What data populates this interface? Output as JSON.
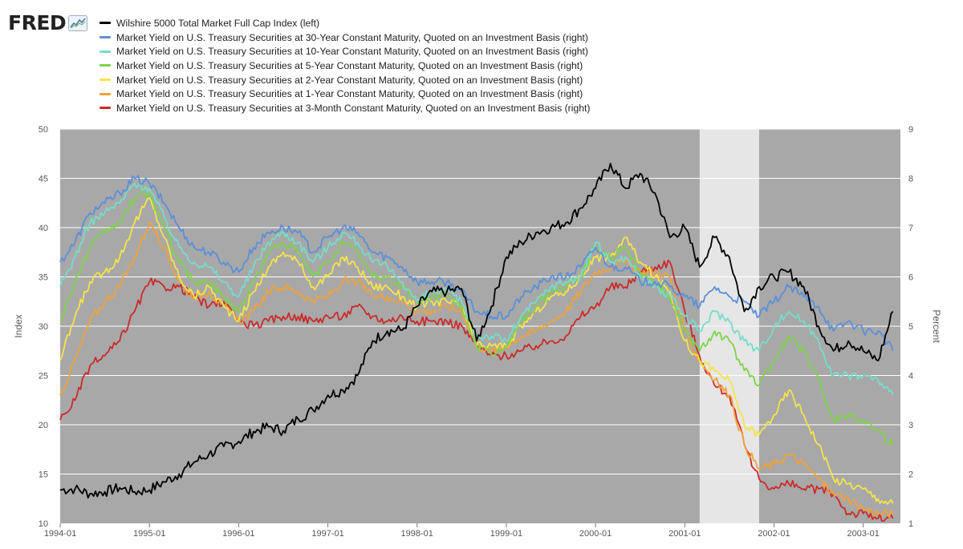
{
  "brand": {
    "name": "FRED"
  },
  "chart_data": {
    "type": "line",
    "title": "",
    "xlabel": "",
    "ylabel_left": "Index",
    "ylabel_right": "Percent",
    "ylim_left": [
      10,
      50
    ],
    "ylim_right": [
      1,
      9
    ],
    "yticks_left": [
      10,
      15,
      20,
      25,
      30,
      35,
      40,
      45,
      50
    ],
    "yticks_right": [
      1,
      2,
      3,
      4,
      5,
      6,
      7,
      8,
      9
    ],
    "xlim": [
      "1994-01-01",
      "2003-06-01"
    ],
    "xticks": [
      "1994-01",
      "1995-01",
      "1996-01",
      "1997-01",
      "1998-01",
      "1999-01",
      "2000-01",
      "2001-01",
      "2002-01",
      "2003-01"
    ],
    "grid": true,
    "legend_position": "top",
    "plot_background": "#a8a8a8",
    "shaded_regions": [
      {
        "start": "2001-03-01",
        "end": "2001-11-01",
        "color": "#e6e6e6"
      }
    ],
    "x": [
      "1994-01",
      "1994-03",
      "1994-05",
      "1994-07",
      "1994-09",
      "1994-11",
      "1995-01",
      "1995-03",
      "1995-05",
      "1995-07",
      "1995-09",
      "1995-11",
      "1996-01",
      "1996-03",
      "1996-05",
      "1996-07",
      "1996-09",
      "1996-11",
      "1997-01",
      "1997-03",
      "1997-05",
      "1997-07",
      "1997-09",
      "1997-11",
      "1998-01",
      "1998-03",
      "1998-05",
      "1998-07",
      "1998-09",
      "1998-11",
      "1999-01",
      "1999-03",
      "1999-05",
      "1999-07",
      "1999-09",
      "1999-11",
      "2000-01",
      "2000-03",
      "2000-05",
      "2000-07",
      "2000-09",
      "2000-11",
      "2001-01",
      "2001-03",
      "2001-05",
      "2001-07",
      "2001-09",
      "2001-11",
      "2002-01",
      "2002-03",
      "2002-05",
      "2002-07",
      "2002-09",
      "2002-11",
      "2003-01",
      "2003-03",
      "2003-05"
    ],
    "series": [
      {
        "name": "Wilshire 5000 Total Market Full Cap Index (left)",
        "axis": "left",
        "color": "#000000",
        "values": [
          13.4,
          13.5,
          13.0,
          13.2,
          13.6,
          13.2,
          13.4,
          14.2,
          15.0,
          16.2,
          17.0,
          17.8,
          18.3,
          19.3,
          19.8,
          19.4,
          20.6,
          21.5,
          23.0,
          23.5,
          25.0,
          28.5,
          29.5,
          29.6,
          32.0,
          33.5,
          33.5,
          33.8,
          28.5,
          32.0,
          37.0,
          38.5,
          39.5,
          40.0,
          40.5,
          42.0,
          44.0,
          46.5,
          44.0,
          45.5,
          43.5,
          39.0,
          40.0,
          36.0,
          39.0,
          37.0,
          31.5,
          34.0,
          35.0,
          35.5,
          34.0,
          30.0,
          27.5,
          28.5,
          27.5,
          26.5,
          31.5
        ]
      },
      {
        "name": "Market Yield on U.S. Treasury Securities at 30-Year Constant Maturity, Quoted on an Investment Basis (right)",
        "axis": "right",
        "color": "#5b8fd9",
        "values": [
          6.3,
          6.7,
          7.3,
          7.5,
          7.7,
          8.0,
          7.9,
          7.5,
          7.0,
          6.6,
          6.5,
          6.3,
          6.1,
          6.6,
          6.9,
          7.0,
          6.9,
          6.5,
          6.8,
          7.0,
          6.9,
          6.5,
          6.4,
          6.2,
          5.9,
          5.9,
          5.9,
          5.7,
          5.3,
          5.2,
          5.2,
          5.6,
          5.8,
          6.0,
          6.0,
          6.2,
          6.6,
          6.2,
          6.2,
          5.9,
          5.9,
          5.8,
          5.6,
          5.4,
          5.8,
          5.6,
          5.5,
          5.2,
          5.5,
          5.8,
          5.6,
          5.4,
          4.9,
          5.1,
          4.9,
          4.9,
          4.5
        ]
      },
      {
        "name": "Market Yield on U.S. Treasury Securities at 10-Year Constant Maturity, Quoted on an Investment Basis (right)",
        "axis": "right",
        "color": "#76ddc9",
        "values": [
          5.8,
          6.4,
          7.1,
          7.3,
          7.5,
          7.9,
          7.8,
          7.2,
          6.6,
          6.3,
          6.2,
          5.9,
          5.6,
          6.2,
          6.7,
          6.9,
          6.7,
          6.3,
          6.6,
          6.9,
          6.7,
          6.3,
          6.2,
          5.9,
          5.5,
          5.7,
          5.7,
          5.5,
          4.8,
          4.8,
          4.7,
          5.2,
          5.5,
          5.8,
          5.9,
          6.0,
          6.7,
          6.3,
          6.4,
          6.0,
          5.8,
          5.6,
          5.2,
          4.9,
          5.3,
          5.1,
          4.7,
          4.5,
          5.0,
          5.3,
          5.1,
          4.7,
          4.0,
          4.0,
          4.0,
          3.9,
          3.6
        ]
      },
      {
        "name": "Market Yield on U.S. Treasury Securities at 5-Year Constant Maturity, Quoted on an Investment Basis (right)",
        "axis": "right",
        "color": "#7ed448",
        "values": [
          5.1,
          5.9,
          6.6,
          6.9,
          7.1,
          7.6,
          7.7,
          7.0,
          6.3,
          5.9,
          5.9,
          5.6,
          5.3,
          5.9,
          6.5,
          6.7,
          6.5,
          6.0,
          6.3,
          6.7,
          6.5,
          6.0,
          6.0,
          5.8,
          5.5,
          5.6,
          5.6,
          5.4,
          4.6,
          4.4,
          4.6,
          5.1,
          5.4,
          5.7,
          5.8,
          6.0,
          6.6,
          6.4,
          6.6,
          6.1,
          5.9,
          5.6,
          4.9,
          4.5,
          4.9,
          4.7,
          4.1,
          3.8,
          4.3,
          4.8,
          4.5,
          3.9,
          3.1,
          3.2,
          3.1,
          2.9,
          2.6
        ]
      },
      {
        "name": "Market Yield on U.S. Treasury Securities at 2-Year Constant Maturity, Quoted on an Investment Basis (right)",
        "axis": "right",
        "color": "#f4e44a",
        "values": [
          4.3,
          5.2,
          5.9,
          6.1,
          6.4,
          7.1,
          7.6,
          6.8,
          6.0,
          5.6,
          5.8,
          5.4,
          5.1,
          5.7,
          6.2,
          6.5,
          6.3,
          5.8,
          6.0,
          6.4,
          6.2,
          5.8,
          5.8,
          5.6,
          5.4,
          5.5,
          5.5,
          5.4,
          4.6,
          4.6,
          4.6,
          5.0,
          5.3,
          5.6,
          5.7,
          6.0,
          6.4,
          6.4,
          6.8,
          6.3,
          6.0,
          5.7,
          4.7,
          4.3,
          4.1,
          3.9,
          3.0,
          2.8,
          3.2,
          3.7,
          3.2,
          2.6,
          1.9,
          1.8,
          1.7,
          1.5,
          1.4
        ]
      },
      {
        "name": "Market Yield on U.S. Treasury Securities at 1-Year Constant Maturity, Quoted on an Investment Basis (right)",
        "axis": "right",
        "color": "#f0a23a",
        "values": [
          3.6,
          4.3,
          5.1,
          5.5,
          5.8,
          6.4,
          7.1,
          6.6,
          5.9,
          5.6,
          5.7,
          5.4,
          5.1,
          5.3,
          5.7,
          5.8,
          5.7,
          5.5,
          5.6,
          5.9,
          5.9,
          5.6,
          5.6,
          5.5,
          5.3,
          5.3,
          5.4,
          5.3,
          4.6,
          4.5,
          4.6,
          4.8,
          4.9,
          5.1,
          5.3,
          5.7,
          6.1,
          6.2,
          6.3,
          6.1,
          6.1,
          6.0,
          4.9,
          4.3,
          3.9,
          3.6,
          2.6,
          2.1,
          2.2,
          2.4,
          2.2,
          1.9,
          1.6,
          1.5,
          1.3,
          1.2,
          1.2
        ]
      },
      {
        "name": "Market Yield on U.S. Treasury Securities at 3-Month Constant Maturity, Quoted on an Investment Basis (right)",
        "axis": "right",
        "color": "#cc2a2a",
        "values": [
          3.1,
          3.5,
          4.2,
          4.4,
          4.7,
          5.3,
          5.9,
          5.8,
          5.8,
          5.6,
          5.4,
          5.5,
          5.1,
          5.0,
          5.1,
          5.2,
          5.2,
          5.1,
          5.2,
          5.2,
          5.4,
          5.2,
          5.1,
          5.2,
          5.1,
          5.1,
          5.1,
          5.0,
          4.6,
          4.4,
          4.4,
          4.5,
          4.6,
          4.7,
          4.8,
          5.2,
          5.4,
          5.8,
          5.8,
          6.1,
          6.2,
          6.3,
          5.3,
          4.4,
          3.8,
          3.6,
          2.6,
          1.9,
          1.7,
          1.8,
          1.7,
          1.7,
          1.6,
          1.2,
          1.2,
          1.1,
          1.1
        ]
      }
    ]
  }
}
